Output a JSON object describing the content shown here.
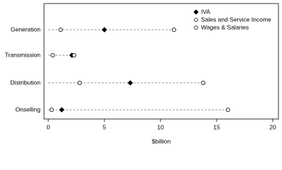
{
  "chart_data": {
    "type": "dot",
    "categories": [
      "Generation",
      "Transmission",
      "Distribution",
      "Onselling"
    ],
    "series": [
      {
        "name": "IVA",
        "color": "#000000",
        "marker": "diamond",
        "values": [
          5.0,
          2.1,
          7.3,
          1.2
        ]
      },
      {
        "name": "Sales and Service Income",
        "color": "#ffffff",
        "marker": "circle",
        "values": [
          11.2,
          2.3,
          13.8,
          16.0
        ]
      },
      {
        "name": "Wages & Salaries",
        "color": "#ffffff",
        "marker": "circle",
        "values": [
          1.1,
          0.4,
          2.8,
          0.3
        ]
      }
    ],
    "xlabel": "$billion",
    "xlim": [
      0,
      20
    ],
    "xticks": [
      0,
      5,
      10,
      15,
      20
    ],
    "legend": "upper right"
  }
}
